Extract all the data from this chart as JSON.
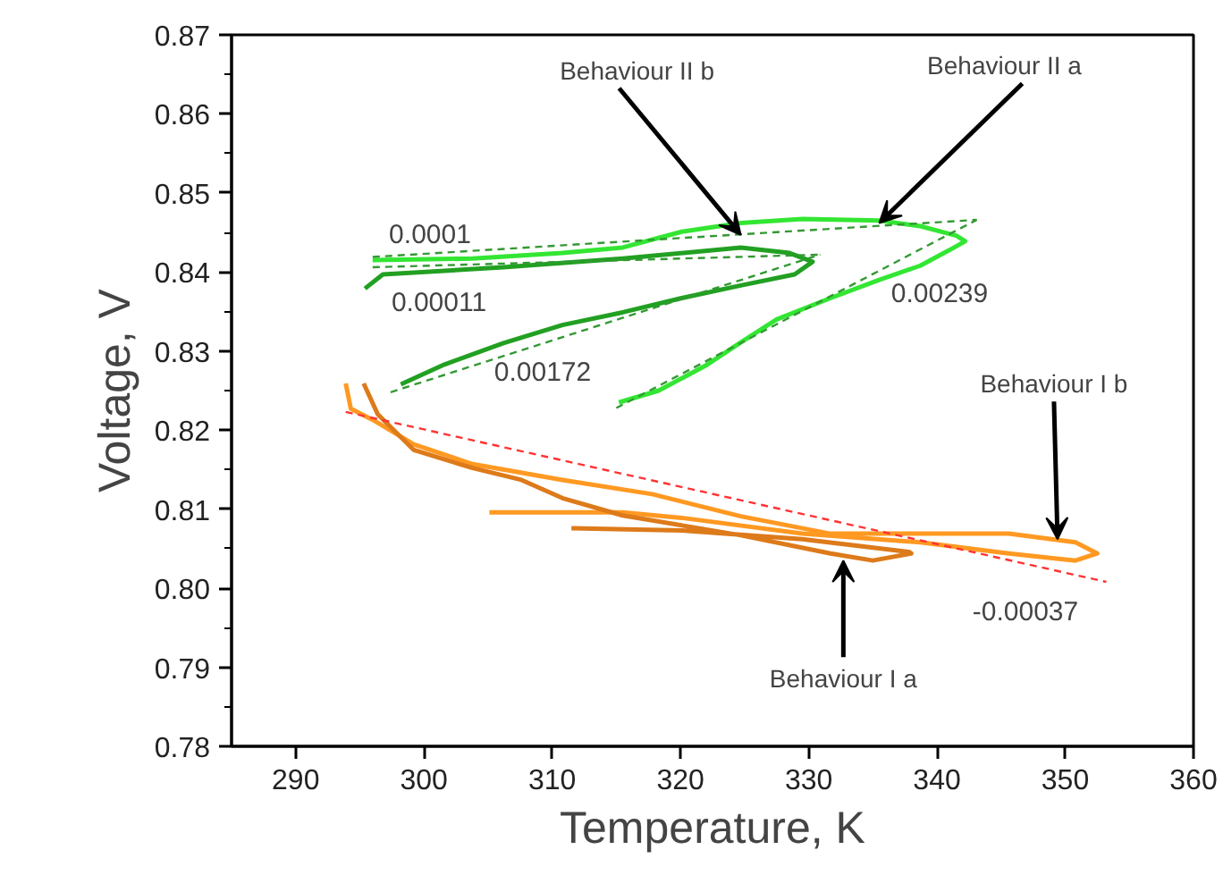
{
  "chart_data": {
    "type": "line",
    "xlabel": "Temperature, K",
    "ylabel": "Voltage, V",
    "xlim": [
      285,
      360
    ],
    "xticks": [
      290,
      300,
      310,
      320,
      330,
      340,
      350,
      360
    ],
    "ylim": [
      0.78,
      0.87
    ],
    "yticks": [
      {
        "value": 0.78,
        "label": "0.78"
      },
      {
        "value": 0.79,
        "label": "0.79"
      },
      {
        "value": 0.8,
        "label": "0.80"
      },
      {
        "value": 0.81,
        "label": "0.81"
      },
      {
        "value": 0.82,
        "label": "0.82"
      },
      {
        "value": 0.83,
        "label": "0.83"
      },
      {
        "value": 0.84,
        "label": "0.84"
      },
      {
        "value": 0.85,
        "label": "0.85"
      },
      {
        "value": 0.86,
        "label": "0.86"
      },
      {
        "value": 0.87,
        "label": "0.87"
      }
    ],
    "grid": false,
    "marker": "none",
    "series": [
      {
        "color": "#33e633",
        "line_style": "solid",
        "x": [
          315.2,
          318.3,
          321.9,
          324.7,
          327.5,
          331.7,
          335.5,
          338.7,
          341.0,
          342.2,
          341.5,
          338.7,
          335.5,
          329.5,
          324.7,
          320.1,
          315.5,
          310.8,
          303.8,
          296.0
        ],
        "values": [
          0.8235,
          0.825,
          0.8281,
          0.8311,
          0.834,
          0.8367,
          0.839,
          0.8408,
          0.8428,
          0.8439,
          0.8446,
          0.8458,
          0.8465,
          0.8467,
          0.8462,
          0.8451,
          0.8431,
          0.8424,
          0.8417,
          0.8415
        ]
      },
      {
        "color": "#22a022",
        "line_style": "solid",
        "x": [
          295.4,
          296.8,
          306.2,
          315.5,
          324.7,
          328.5,
          330.3,
          328.9,
          324.7,
          320.1,
          315.5,
          310.8,
          306.2,
          301.6,
          298.2
        ],
        "values": [
          0.8379,
          0.8397,
          0.8406,
          0.8417,
          0.8431,
          0.8424,
          0.8413,
          0.8397,
          0.8383,
          0.8367,
          0.8349,
          0.8333,
          0.831,
          0.8283,
          0.8258
        ]
      },
      {
        "color": "#ff9922",
        "line_style": "solid",
        "x": [
          293.9,
          294.3,
          296.0,
          299.2,
          303.8,
          310.8,
          317.8,
          324.7,
          331.7,
          338.7,
          345.6,
          350.8,
          352.5,
          350.8,
          345.6,
          338.7,
          329.5,
          320.1,
          315.5,
          305.1
        ],
        "values": [
          0.8259,
          0.8227,
          0.8213,
          0.8182,
          0.8157,
          0.8137,
          0.8119,
          0.8091,
          0.8069,
          0.8069,
          0.8069,
          0.8058,
          0.8044,
          0.8035,
          0.8044,
          0.8058,
          0.8069,
          0.8089,
          0.8096,
          0.8096
        ]
      },
      {
        "color": "#dd7a1a",
        "line_style": "solid",
        "x": [
          295.3,
          296.4,
          299.2,
          303.8,
          307.6,
          310.8,
          315.5,
          324.7,
          331.7,
          335.0,
          338.0,
          337.8,
          329.5,
          320.1,
          311.5
        ],
        "values": [
          0.8259,
          0.822,
          0.8175,
          0.8152,
          0.8137,
          0.8114,
          0.8092,
          0.8067,
          0.8044,
          0.8035,
          0.8044,
          0.8046,
          0.8062,
          0.8073,
          0.8076
        ]
      },
      {
        "color": "#339933",
        "line_style": "dashed",
        "x": [
          296.0,
          343.1
        ],
        "values": [
          0.8419,
          0.8466
        ]
      },
      {
        "color": "#339933",
        "line_style": "dashed",
        "x": [
          296.0,
          330.9
        ],
        "values": [
          0.8406,
          0.8422
        ]
      },
      {
        "color": "#339933",
        "line_style": "dashed",
        "x": [
          297.4,
          330.9
        ],
        "values": [
          0.8248,
          0.8422
        ]
      },
      {
        "color": "#339933",
        "line_style": "dashed",
        "x": [
          315.0,
          343.1
        ],
        "values": [
          0.8228,
          0.8466
        ]
      },
      {
        "color": "#ff3333",
        "line_style": "dashed",
        "x": [
          293.9,
          353.2
        ],
        "values": [
          0.8223,
          0.8008
        ]
      }
    ],
    "annotations": [
      {
        "text": "Behaviour II b",
        "x": 324.7,
        "y": 0.8447
      },
      {
        "text": "Behaviour II a",
        "x": 335.5,
        "y": 0.8462
      },
      {
        "text": "Behaviour I b",
        "x": 349.4,
        "y": 0.8062
      },
      {
        "text": "Behaviour I a",
        "x": 332.7,
        "y": 0.8035
      },
      "0.0001",
      "0.00011",
      "0.00172",
      "0.00239",
      "-0.00037"
    ]
  }
}
